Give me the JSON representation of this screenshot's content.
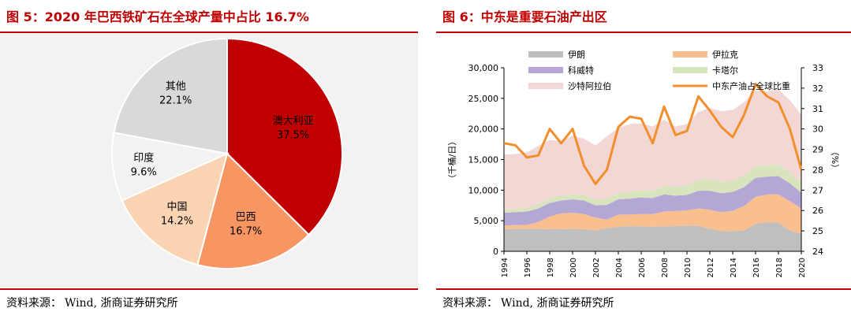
{
  "left": {
    "title": "图  5：2020 年巴西铁矿石在全球产量中占比 16.7%",
    "source_label": "资料来源：",
    "source_text": "Wind, 浙商证券研究所",
    "chart_data": {
      "type": "pie",
      "title": "2020 年巴西铁矿石在全球产量中占比 16.7%",
      "labels": [
        "澳大利亚",
        "巴西",
        "中国",
        "印度",
        "其他"
      ],
      "values": [
        37.5,
        16.7,
        14.2,
        9.6,
        22.1
      ],
      "value_labels": [
        "37.5%",
        "16.7%",
        "14.2%",
        "9.6%",
        "22.1%"
      ],
      "colors": [
        "#c00000",
        "#f79663",
        "#fbd4b4",
        "#f2f2f2",
        "#d9d9d9"
      ]
    }
  },
  "right": {
    "title": "图  6：中东是重要石油产出区",
    "source_label": "资料来源：",
    "source_text": "Wind, 浙商证券研究所",
    "chart_data": {
      "type": "area",
      "title": "中东是重要石油产出区",
      "ylabel": "（千桶/日）",
      "y2label": "（%）",
      "ylim": [
        0,
        30000
      ],
      "y_ticks": [
        "0",
        "5,000",
        "10,000",
        "15,000",
        "20,000",
        "25,000",
        "30,000"
      ],
      "y_tick_values": [
        0,
        5000,
        10000,
        15000,
        20000,
        25000,
        30000
      ],
      "y2lim": [
        24,
        33
      ],
      "y2_ticks": [
        "24",
        "25",
        "26",
        "27",
        "28",
        "29",
        "30",
        "31",
        "32",
        "33"
      ],
      "y2_tick_values": [
        24,
        25,
        26,
        27,
        28,
        29,
        30,
        31,
        32,
        33
      ],
      "x": [
        1994,
        1995,
        1996,
        1997,
        1998,
        1999,
        2000,
        2001,
        2002,
        2003,
        2004,
        2005,
        2006,
        2007,
        2008,
        2009,
        2010,
        2011,
        2012,
        2013,
        2014,
        2015,
        2016,
        2017,
        2018,
        2019,
        2020
      ],
      "x_tick_labels": [
        "1994",
        "1996",
        "1998",
        "2000",
        "2002",
        "2004",
        "2006",
        "2008",
        "2010",
        "2012",
        "2014",
        "2016",
        "2018",
        "2020"
      ],
      "x_tick_values": [
        1994,
        1996,
        1998,
        2000,
        2002,
        2004,
        2006,
        2008,
        2010,
        2012,
        2014,
        2016,
        2018,
        2020
      ],
      "series": [
        {
          "name": "伊朗",
          "color": "#bfbfbf",
          "values": [
            3600,
            3700,
            3700,
            3700,
            3600,
            3600,
            3700,
            3600,
            3400,
            3800,
            4000,
            4100,
            4100,
            4000,
            4100,
            4100,
            4200,
            4200,
            3700,
            3300,
            3300,
            3400,
            4500,
            4800,
            4700,
            3400,
            2900
          ]
        },
        {
          "name": "伊拉克",
          "color": "#f9bf8f",
          "values": [
            600,
            600,
            600,
            1100,
            2100,
            2600,
            2600,
            2500,
            2100,
            1400,
            2000,
            1900,
            2000,
            2100,
            2400,
            2500,
            2500,
            2800,
            3100,
            3100,
            3300,
            4000,
            4400,
            4500,
            4600,
            4800,
            4100
          ]
        },
        {
          "name": "科威特",
          "color": "#b4a7d6",
          "values": [
            2100,
            2100,
            2200,
            2200,
            2200,
            2100,
            2200,
            2200,
            2000,
            2400,
            2500,
            2600,
            2700,
            2600,
            2800,
            2500,
            2500,
            2900,
            3100,
            3100,
            3100,
            3100,
            3100,
            2900,
            3000,
            2900,
            2600
          ]
        },
        {
          "name": "卡塔尔",
          "color": "#d7e4bd",
          "values": [
            500,
            500,
            600,
            700,
            800,
            800,
            900,
            900,
            900,
            1000,
            1100,
            1100,
            1200,
            1200,
            1400,
            1400,
            1600,
            1800,
            1900,
            1900,
            1900,
            1900,
            1900,
            1900,
            1900,
            1800,
            1700
          ]
        },
        {
          "name": "沙特阿拉伯",
          "color": "#f2d7d5",
          "values": [
            9000,
            9000,
            9100,
            9500,
            9500,
            8900,
            9500,
            9200,
            8900,
            10200,
            10600,
            11100,
            10900,
            10500,
            10800,
            9900,
            10000,
            11100,
            11600,
            11500,
            11500,
            12000,
            12400,
            12000,
            12300,
            11800,
            11000
          ]
        }
      ],
      "line": {
        "name": "中东产油占全球比重",
        "color": "#f28e2b",
        "values": [
          29.3,
          29.2,
          28.6,
          28.7,
          30.0,
          29.3,
          30.0,
          28.2,
          27.3,
          28.0,
          30.1,
          30.6,
          30.5,
          29.3,
          31.1,
          29.7,
          29.9,
          31.6,
          30.9,
          30.1,
          29.6,
          30.7,
          32.2,
          31.6,
          31.3,
          30.0,
          28.0
        ]
      }
    }
  }
}
